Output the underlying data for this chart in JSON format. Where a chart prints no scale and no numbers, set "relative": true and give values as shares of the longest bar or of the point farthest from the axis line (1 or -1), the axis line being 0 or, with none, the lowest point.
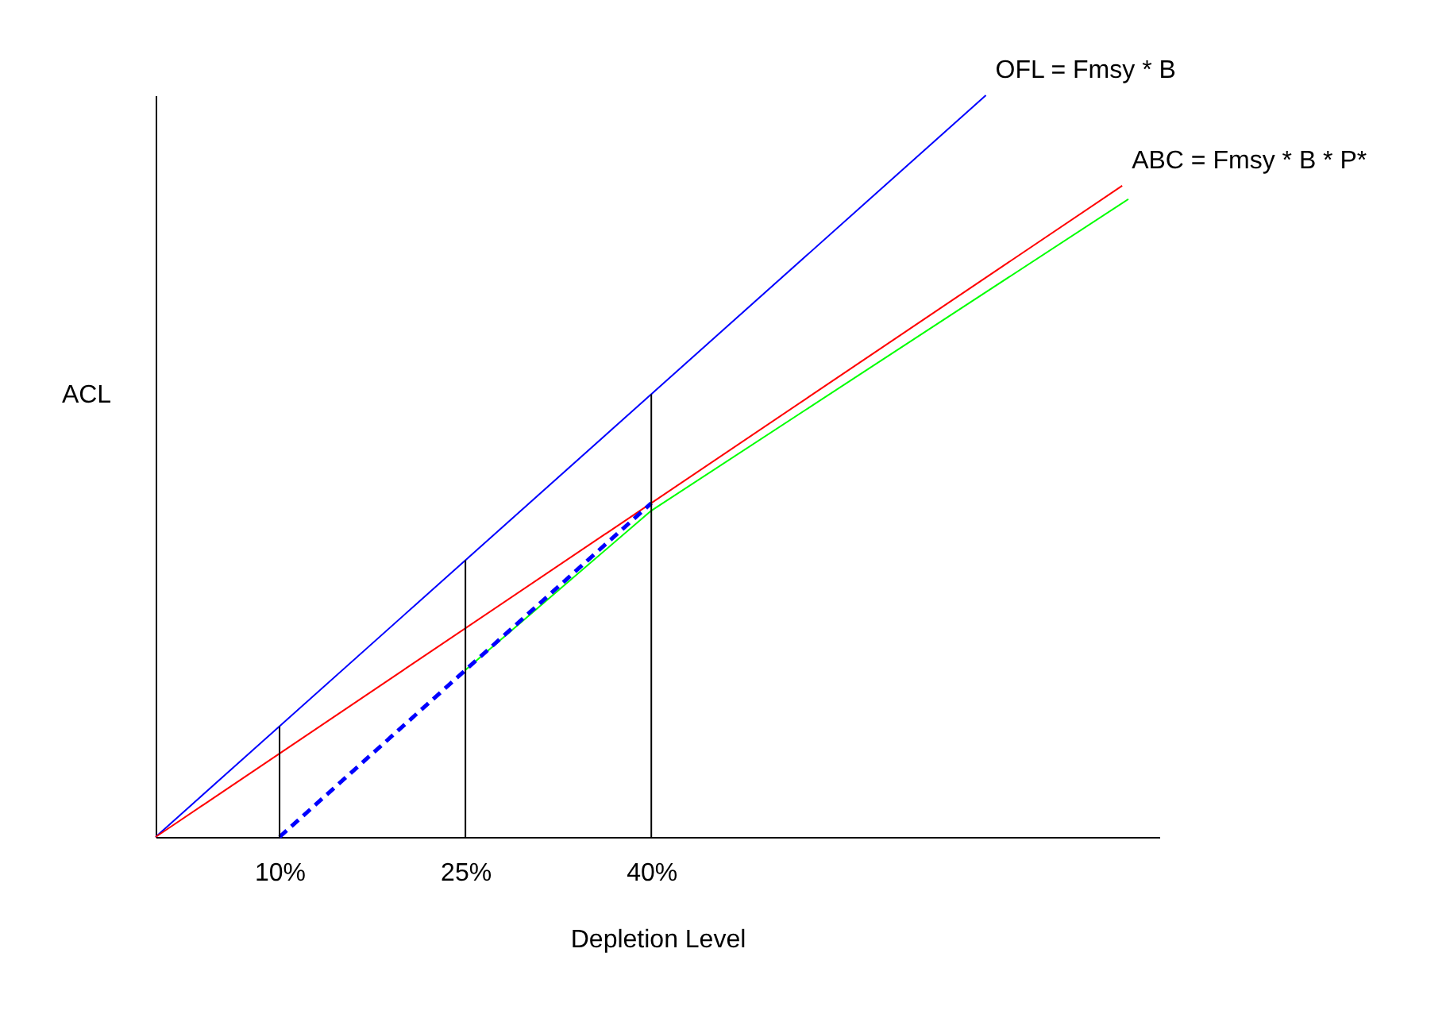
{
  "chart_data": {
    "type": "line",
    "relative": true,
    "xlabel": "Depletion Level",
    "ylabel": "ACL",
    "xlim": [
      0,
      81
    ],
    "xticks": [
      {
        "value": 10,
        "label": "10%"
      },
      {
        "value": 25,
        "label": "25%"
      },
      {
        "value": 40,
        "label": "40%"
      }
    ],
    "grid": false,
    "tick_labels": "x",
    "marker": "none",
    "series": [
      {
        "name": "OFL = Fmsy * B",
        "color": "#0000ff",
        "x": [
          0,
          67
        ],
        "values": [
          0,
          1
        ],
        "line_style": "solid"
      },
      {
        "name": "ABC = Fmsy * B * P*",
        "color": "#ff0000",
        "x": [
          0,
          78
        ],
        "values": [
          0,
          0.878
        ],
        "line_style": "solid"
      },
      {
        "color": "#00ff00",
        "x": [
          25,
          40,
          78.5
        ],
        "values": [
          0.225,
          0.44,
          0.86
        ],
        "line_style": "solid"
      },
      {
        "color": "#0000ff",
        "x": [
          10,
          40
        ],
        "values": [
          0,
          0.45
        ],
        "line_style": "dashed"
      },
      {
        "color": "#000000",
        "x": [
          10,
          10
        ],
        "values": [
          0,
          0.149
        ],
        "line_style": "solid"
      },
      {
        "color": "#000000",
        "x": [
          25,
          25
        ],
        "values": [
          0,
          0.373
        ],
        "line_style": "solid"
      },
      {
        "color": "#000000",
        "x": [
          40,
          40
        ],
        "values": [
          0,
          0.597
        ],
        "line_style": "solid"
      }
    ]
  }
}
